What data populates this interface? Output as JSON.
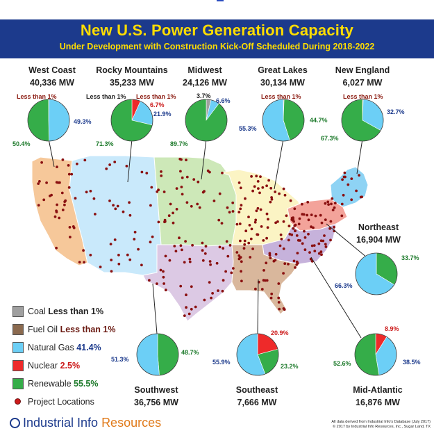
{
  "title": "New U.S. Power Generation Capacity",
  "subtitle": "Under Development with Construction Kick-Off Scheduled During 2018-2022",
  "colors": {
    "banner": "#1c3a8c",
    "title_text": "#ffdd00",
    "coal": "#a0a0a0",
    "fuel_oil": "#8b6a4f",
    "natural_gas": "#6ccff6",
    "nuclear": "#ee2a2a",
    "renewable": "#35ad49",
    "project_dot": "#8a1010"
  },
  "legend": {
    "items": [
      {
        "key": "coal",
        "label": "Coal",
        "value": "Less than 1%",
        "value_color": "#222222"
      },
      {
        "key": "fuel_oil",
        "label": "Fuel Oil",
        "value": "Less than 1%",
        "value_color": "#6b1a12"
      },
      {
        "key": "natural_gas",
        "label": "Natural Gas",
        "value": "41.4%",
        "value_color": "#1c3a8c"
      },
      {
        "key": "nuclear",
        "label": "Nuclear",
        "value": "2.5%",
        "value_color": "#cc1a1a"
      },
      {
        "key": "renewable",
        "label": "Renewable",
        "value": "55.5%",
        "value_color": "#1d7a2b"
      }
    ],
    "project_locations": "Project Locations"
  },
  "chart_data": {
    "type": "pie",
    "series_keys": [
      "coal",
      "fuel_oil",
      "natural_gas",
      "nuclear",
      "renewable"
    ],
    "regions": [
      {
        "name": "West Coast",
        "capacity": "40,336 MW",
        "slices": [
          {
            "key": "nuclear",
            "value": 0.3
          },
          {
            "key": "natural_gas",
            "value": 49.3
          },
          {
            "key": "renewable",
            "value": 50.4
          }
        ],
        "labels": [
          {
            "text": "Less than 1%",
            "key": "nuclear"
          },
          {
            "text": "49.3%",
            "key": "natural_gas"
          },
          {
            "text": "50.4%",
            "key": "renewable"
          }
        ]
      },
      {
        "name": "Rocky Mountains",
        "capacity": "35,233 MW",
        "slices": [
          {
            "key": "nuclear",
            "value": 6.7
          },
          {
            "key": "natural_gas",
            "value": 21.9
          },
          {
            "key": "renewable",
            "value": 71.3
          }
        ],
        "labels": [
          {
            "text": "Less than 1%",
            "key": "coal"
          },
          {
            "text": "Less than 1%",
            "key": "nuclear"
          },
          {
            "text": "6.7%",
            "key": "nuclear"
          },
          {
            "text": "21.9%",
            "key": "natural_gas"
          },
          {
            "text": "71.3%",
            "key": "renewable"
          }
        ]
      },
      {
        "name": "Midwest",
        "capacity": "24,126 MW",
        "slices": [
          {
            "key": "coal",
            "value": 3.7
          },
          {
            "key": "natural_gas",
            "value": 6.6
          },
          {
            "key": "renewable",
            "value": 89.7
          }
        ],
        "labels": [
          {
            "text": "3.7%",
            "key": "coal"
          },
          {
            "text": "6.6%",
            "key": "natural_gas"
          },
          {
            "text": "89.7%",
            "key": "renewable"
          }
        ]
      },
      {
        "name": "Great Lakes",
        "capacity": "30,134 MW",
        "slices": [
          {
            "key": "fuel_oil",
            "value": 0.6
          },
          {
            "key": "renewable",
            "value": 44.7
          },
          {
            "key": "natural_gas",
            "value": 55.3
          }
        ],
        "labels": [
          {
            "text": "Less than 1%",
            "key": "fuel_oil"
          },
          {
            "text": "44.7%",
            "key": "renewable"
          },
          {
            "text": "55.3%",
            "key": "natural_gas"
          }
        ]
      },
      {
        "name": "New England",
        "capacity": "6,027 MW",
        "slices": [
          {
            "key": "fuel_oil",
            "value": 0.6
          },
          {
            "key": "natural_gas",
            "value": 32.7
          },
          {
            "key": "renewable",
            "value": 67.3
          }
        ],
        "labels": [
          {
            "text": "Less than 1%",
            "key": "fuel_oil"
          },
          {
            "text": "32.7%",
            "key": "natural_gas"
          },
          {
            "text": "67.3%",
            "key": "renewable"
          }
        ]
      },
      {
        "name": "Northeast",
        "capacity": "16,904 MW",
        "slices": [
          {
            "key": "renewable",
            "value": 33.7
          },
          {
            "key": "natural_gas",
            "value": 66.3
          }
        ],
        "labels": [
          {
            "text": "33.7%",
            "key": "renewable"
          },
          {
            "text": "66.3%",
            "key": "natural_gas"
          }
        ]
      },
      {
        "name": "Southwest",
        "capacity": "36,756 MW",
        "slices": [
          {
            "key": "renewable",
            "value": 48.7
          },
          {
            "key": "natural_gas",
            "value": 51.3
          }
        ],
        "labels": [
          {
            "text": "48.7%",
            "key": "renewable"
          },
          {
            "text": "51.3%",
            "key": "natural_gas"
          }
        ]
      },
      {
        "name": "Southeast",
        "capacity": "7,666 MW",
        "slices": [
          {
            "key": "nuclear",
            "value": 20.9
          },
          {
            "key": "renewable",
            "value": 23.2
          },
          {
            "key": "natural_gas",
            "value": 55.9
          }
        ],
        "labels": [
          {
            "text": "20.9%",
            "key": "nuclear"
          },
          {
            "text": "23.2%",
            "key": "renewable"
          },
          {
            "text": "55.9%",
            "key": "natural_gas"
          }
        ]
      },
      {
        "name": "Mid-Atlantic",
        "capacity": "16,876 MW",
        "slices": [
          {
            "key": "nuclear",
            "value": 8.9
          },
          {
            "key": "natural_gas",
            "value": 38.5
          },
          {
            "key": "renewable",
            "value": 52.6
          }
        ],
        "labels": [
          {
            "text": "8.9%",
            "key": "nuclear"
          },
          {
            "text": "38.5%",
            "key": "natural_gas"
          },
          {
            "text": "52.6%",
            "key": "renewable"
          }
        ]
      }
    ]
  },
  "footer": {
    "logo_text_1": "Industrial Info ",
    "logo_text_2": "Resources",
    "credit_line_1": "All data derived from Industrial Info's Database (July 2017)",
    "credit_line_2": "© 2017 by Industrial Info Resources, Inc., Sugar Land, TX"
  }
}
